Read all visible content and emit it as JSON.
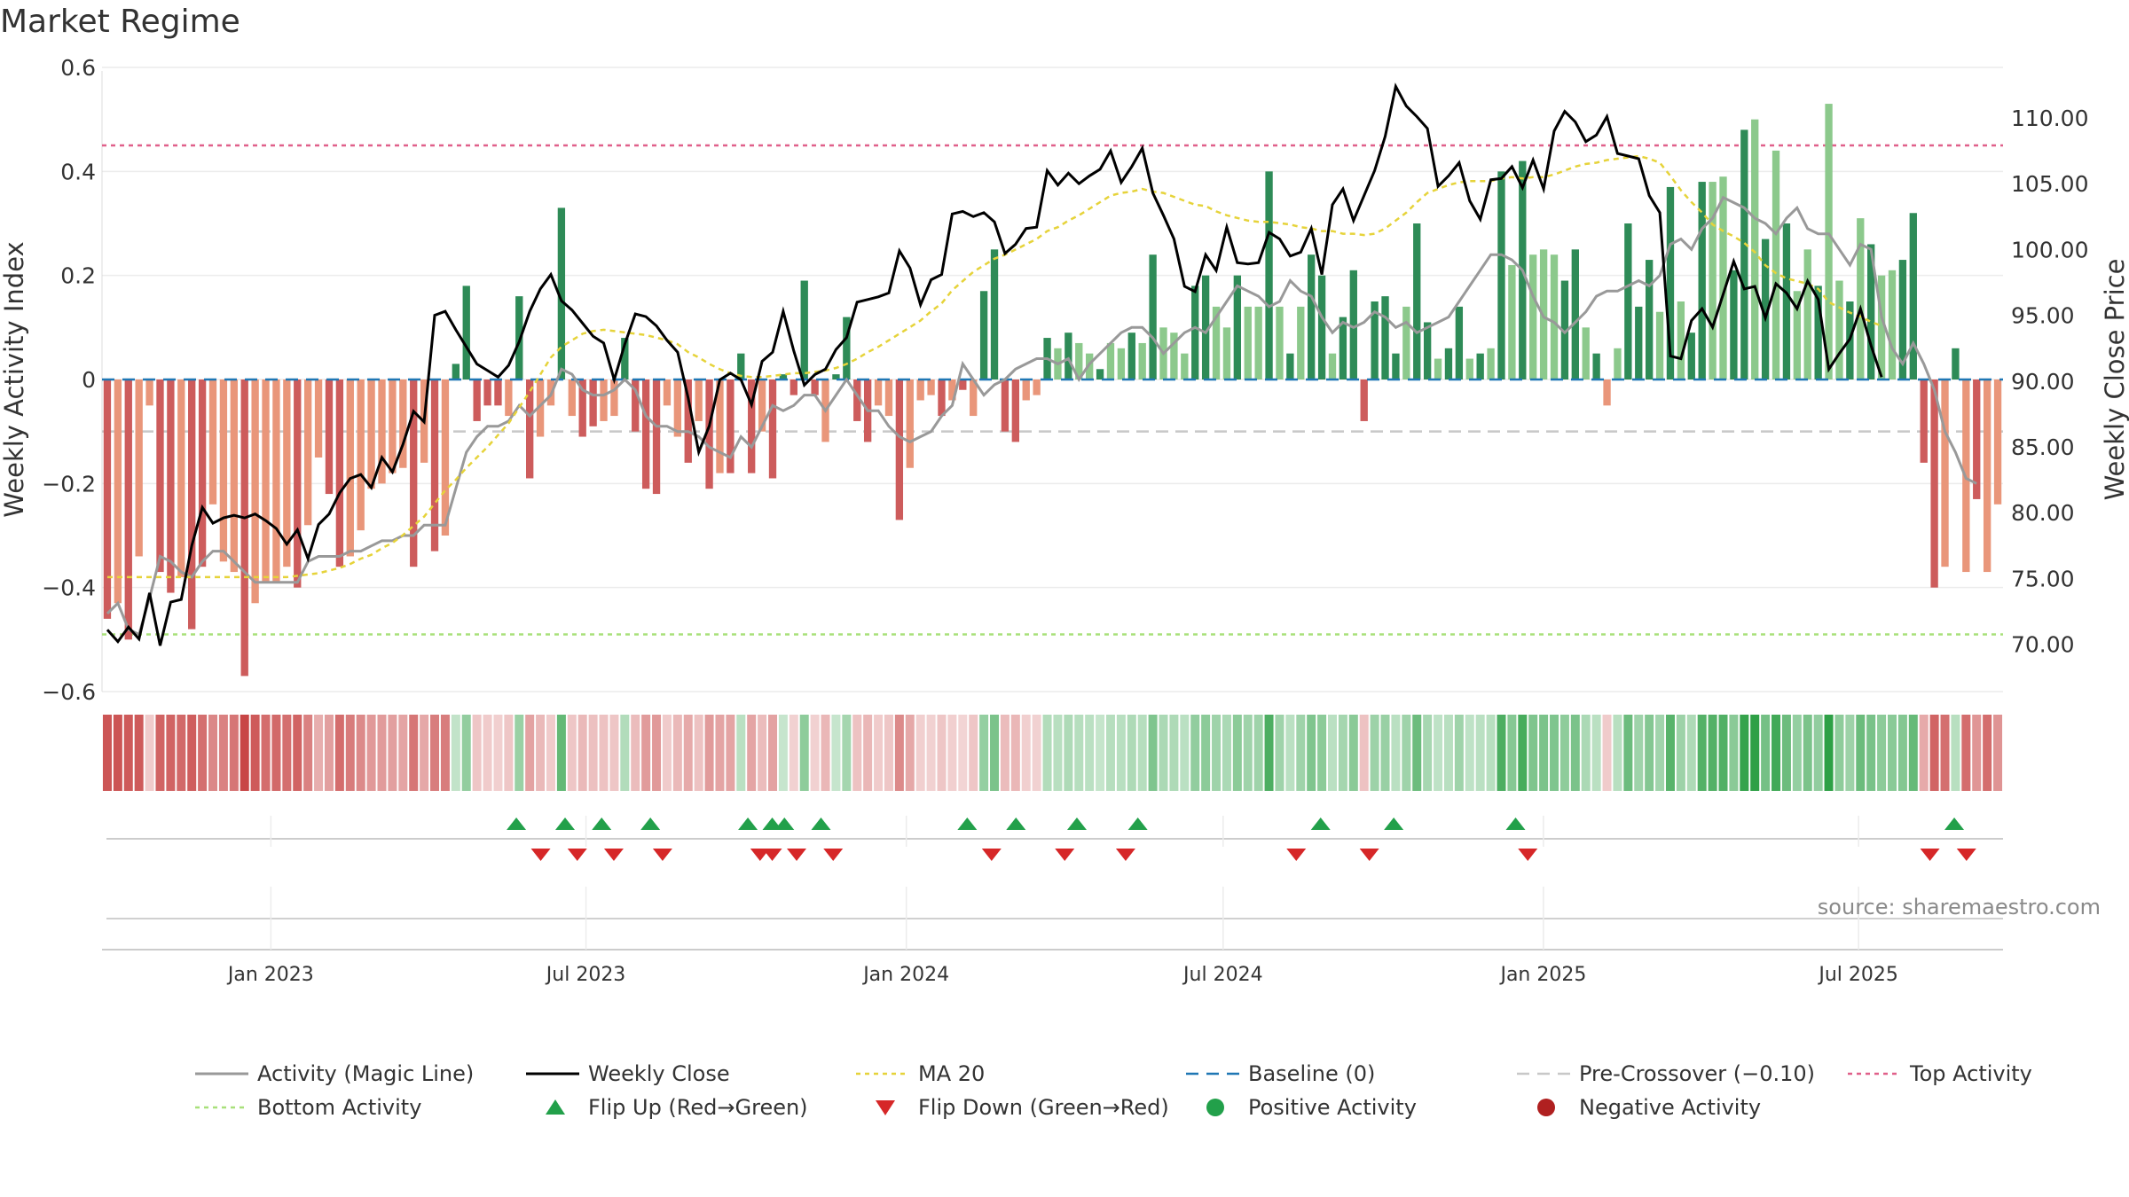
{
  "title": "Market Regime",
  "source": "source: sharemaestro.com",
  "colors": {
    "strong_pos": "#2e8b57",
    "weak_pos": "#8cc98c",
    "strong_neg": "#cd5c5c",
    "weak_neg": "#e9967a",
    "close_line": "#000000",
    "magic_line": "#999999",
    "ma": "#e6d33a",
    "baseline": "#1f77b4",
    "pre_crossover": "#c8c8c8",
    "top_activity": "#e0608a",
    "bottom_activity": "#a8e07a",
    "flip_up": "#22a04a",
    "flip_down": "#d62728"
  },
  "chart_data": {
    "type": "bar",
    "title": "Market Regime",
    "ylabel": "Weekly Activity Index",
    "y2label": "Weekly Close Price",
    "ylim": [
      -0.6,
      0.6
    ],
    "y2lim": [
      70,
      110
    ],
    "yticks": [
      "0.6",
      "0.4",
      "0.2",
      "0",
      "−0.2",
      "−0.4",
      "−0.6"
    ],
    "y2ticks": [
      "110.00",
      "105.00",
      "100.00",
      "95.00",
      "90.00",
      "85.00",
      "80.00",
      "75.00",
      "70.00"
    ],
    "xticks": [
      "Jan 2023",
      "Jul 2023",
      "Jan 2024",
      "Jul 2024",
      "Jan 2025",
      "Jul 2025"
    ],
    "x_start": "2022-09-26",
    "x_end": "2025-09-22",
    "reference_lines": {
      "baseline": 0,
      "pre_crossover": -0.1,
      "top_activity": 0.45,
      "bottom_activity": -0.49
    },
    "activity": [
      -0.46,
      -0.43,
      -0.5,
      -0.34,
      -0.05,
      -0.37,
      -0.41,
      -0.38,
      -0.48,
      -0.36,
      -0.24,
      -0.35,
      -0.37,
      -0.57,
      -0.43,
      -0.39,
      -0.39,
      -0.36,
      -0.4,
      -0.28,
      -0.15,
      -0.22,
      -0.36,
      -0.34,
      -0.29,
      -0.21,
      -0.2,
      -0.18,
      -0.17,
      -0.36,
      -0.16,
      -0.33,
      -0.3,
      0.03,
      0.18,
      -0.08,
      -0.05,
      -0.05,
      -0.07,
      0.16,
      -0.19,
      -0.11,
      -0.05,
      0.33,
      -0.07,
      -0.11,
      -0.09,
      -0.08,
      -0.07,
      0.08,
      -0.1,
      -0.21,
      -0.22,
      -0.05,
      -0.11,
      -0.16,
      -0.08,
      -0.21,
      -0.18,
      -0.18,
      0.05,
      -0.18,
      -0.1,
      -0.19,
      0.01,
      -0.03,
      0.19,
      -0.03,
      -0.12,
      0.01,
      0.12,
      -0.08,
      -0.12,
      -0.05,
      -0.07,
      -0.27,
      -0.17,
      -0.04,
      -0.03,
      -0.07,
      -0.04,
      -0.02,
      -0.07,
      0.17,
      0.25,
      -0.1,
      -0.12,
      -0.04,
      -0.03,
      0.08,
      0.06,
      0.09,
      0.07,
      0.05,
      0.02,
      0.07,
      0.06,
      0.09,
      0.07,
      0.24,
      0.1,
      0.09,
      0.05,
      0.18,
      0.2,
      0.14,
      0.1,
      0.2,
      0.14,
      0.14,
      0.4,
      0.14,
      0.05,
      0.14,
      0.24,
      0.2,
      0.05,
      0.12,
      0.21,
      -0.08,
      0.15,
      0.16,
      0.05,
      0.14,
      0.3,
      0.11,
      0.04,
      0.06,
      0.14,
      0.04,
      0.05,
      0.06,
      0.4,
      0.22,
      0.42,
      0.24,
      0.25,
      0.24,
      0.19,
      0.25,
      0.1,
      0.05,
      -0.05,
      0.06,
      0.3,
      0.14,
      0.23,
      0.13,
      0.37,
      0.15,
      0.09,
      0.38,
      0.38,
      0.39,
      0.21,
      0.48,
      0.5,
      0.27,
      0.44,
      0.3,
      0.17,
      0.25,
      0.18,
      0.53,
      0.19,
      0.15,
      0.31,
      0.26,
      0.2,
      0.21,
      0.23,
      0.32,
      -0.16,
      -0.4,
      -0.36,
      0.06,
      -0.37,
      -0.23,
      -0.37,
      -0.24
    ],
    "activity_strong": [
      true,
      false,
      true,
      false,
      false,
      true,
      true,
      false,
      true,
      true,
      false,
      false,
      false,
      true,
      false,
      false,
      false,
      false,
      true,
      false,
      false,
      true,
      true,
      false,
      false,
      false,
      false,
      false,
      false,
      true,
      false,
      true,
      false,
      true,
      true,
      true,
      true,
      true,
      false,
      true,
      true,
      false,
      false,
      true,
      false,
      true,
      true,
      false,
      false,
      true,
      true,
      true,
      true,
      false,
      false,
      true,
      false,
      true,
      false,
      true,
      true,
      true,
      false,
      true,
      true,
      true,
      true,
      true,
      false,
      true,
      true,
      true,
      true,
      false,
      false,
      true,
      false,
      false,
      false,
      true,
      false,
      true,
      false,
      true,
      true,
      true,
      true,
      false,
      false,
      true,
      false,
      true,
      false,
      false,
      true,
      false,
      false,
      true,
      false,
      true,
      false,
      false,
      false,
      true,
      true,
      false,
      false,
      true,
      false,
      false,
      true,
      false,
      true,
      false,
      true,
      true,
      false,
      true,
      true,
      true,
      true,
      true,
      true,
      false,
      true,
      true,
      false,
      true,
      true,
      false,
      true,
      false,
      true,
      false,
      true,
      false,
      false,
      false,
      true,
      true,
      false,
      true,
      false,
      false,
      true,
      true,
      true,
      false,
      true,
      false,
      true,
      true,
      false,
      false,
      true,
      true,
      false,
      true,
      false,
      true,
      false,
      false,
      true,
      false,
      false,
      true,
      false,
      true,
      false,
      false,
      true,
      true,
      true,
      true,
      false,
      true,
      false,
      true,
      false
    ],
    "magic_line": [
      -0.45,
      -0.43,
      -0.48,
      -0.49,
      -0.42,
      -0.34,
      -0.35,
      -0.37,
      -0.38,
      -0.35,
      -0.33,
      -0.33,
      -0.35,
      -0.37,
      -0.39,
      -0.39,
      -0.39,
      -0.39,
      -0.39,
      -0.35,
      -0.34,
      -0.34,
      -0.34,
      -0.33,
      -0.33,
      -0.32,
      -0.31,
      -0.31,
      -0.3,
      -0.3,
      -0.28,
      -0.28,
      -0.28,
      -0.21,
      -0.14,
      -0.11,
      -0.09,
      -0.09,
      -0.08,
      -0.05,
      -0.07,
      -0.05,
      -0.03,
      0.02,
      0.01,
      -0.02,
      -0.03,
      -0.03,
      -0.02,
      0.0,
      -0.02,
      -0.07,
      -0.09,
      -0.09,
      -0.1,
      -0.1,
      -0.11,
      -0.13,
      -0.14,
      -0.15,
      -0.11,
      -0.13,
      -0.09,
      -0.05,
      -0.06,
      -0.05,
      -0.03,
      -0.03,
      -0.06,
      -0.03,
      0.0,
      -0.03,
      -0.06,
      -0.06,
      -0.09,
      -0.11,
      -0.12,
      -0.11,
      -0.1,
      -0.07,
      -0.05,
      0.03,
      0.0,
      -0.03,
      -0.01,
      0.0,
      0.02,
      0.03,
      0.04,
      0.04,
      0.03,
      0.04,
      0.0,
      0.03,
      0.05,
      0.07,
      0.09,
      0.1,
      0.1,
      0.08,
      0.05,
      0.07,
      0.09,
      0.1,
      0.09,
      0.12,
      0.15,
      0.18,
      0.17,
      0.16,
      0.14,
      0.15,
      0.19,
      0.17,
      0.16,
      0.12,
      0.09,
      0.11,
      0.1,
      0.11,
      0.13,
      0.12,
      0.1,
      0.11,
      0.09,
      0.1,
      0.11,
      0.12,
      0.15,
      0.18,
      0.21,
      0.24,
      0.24,
      0.23,
      0.21,
      0.16,
      0.12,
      0.11,
      0.09,
      0.11,
      0.13,
      0.16,
      0.17,
      0.17,
      0.18,
      0.19,
      0.18,
      0.2,
      0.26,
      0.27,
      0.25,
      0.29,
      0.31,
      0.35,
      0.34,
      0.33,
      0.31,
      0.3,
      0.28,
      0.31,
      0.33,
      0.29,
      0.28,
      0.28,
      0.25,
      0.22,
      0.26,
      0.25,
      0.12,
      0.06,
      0.03,
      0.07,
      0.03,
      -0.02,
      -0.1,
      -0.14,
      -0.19,
      -0.2
    ],
    "close": [
      71.1,
      70.2,
      71.3,
      70.4,
      73.9,
      69.9,
      73.2,
      73.4,
      77.5,
      80.4,
      79.2,
      79.6,
      79.8,
      79.6,
      79.9,
      79.4,
      78.8,
      77.6,
      78.7,
      76.5,
      79.1,
      79.9,
      81.5,
      82.6,
      82.9,
      81.9,
      84.2,
      83.1,
      85.2,
      87.7,
      86.9,
      95.0,
      95.3,
      93.9,
      92.6,
      91.3,
      90.8,
      90.3,
      91.2,
      93.0,
      95.3,
      97.0,
      98.1,
      96.1,
      95.4,
      94.4,
      93.4,
      92.9,
      90.1,
      92.8,
      95.1,
      94.9,
      94.2,
      93.1,
      92.2,
      88.7,
      84.6,
      86.6,
      90.1,
      90.6,
      90.1,
      88.2,
      91.5,
      92.2,
      95.3,
      92.3,
      89.7,
      90.5,
      90.9,
      92.4,
      93.3,
      96.0,
      96.2,
      96.4,
      96.7,
      99.9,
      98.6,
      95.8,
      97.7,
      98.1,
      102.7,
      102.9,
      102.5,
      102.8,
      102.1,
      99.7,
      100.4,
      101.6,
      101.7,
      106.0,
      104.9,
      105.8,
      105.0,
      105.6,
      106.1,
      107.5,
      105.1,
      106.3,
      107.7,
      104.3,
      102.6,
      100.8,
      97.2,
      96.8,
      99.6,
      98.4,
      101.7,
      99.0,
      98.9,
      99.0,
      101.3,
      100.8,
      99.5,
      99.8,
      101.6,
      98.1,
      103.4,
      104.6,
      102.2,
      104.1,
      106.0,
      108.6,
      112.4,
      110.9,
      110.1,
      109.2,
      104.8,
      105.6,
      106.6,
      103.7,
      102.3,
      105.3,
      105.4,
      106.3,
      104.7,
      106.8,
      104.6,
      109.0,
      110.5,
      109.7,
      108.2,
      108.7,
      110.1,
      107.3,
      107.1,
      106.9,
      104.1,
      102.8,
      91.9,
      91.7,
      94.6,
      95.5,
      94.1,
      96.6,
      99.1,
      97.0,
      97.2,
      94.8,
      97.4,
      96.7,
      95.5,
      97.6,
      96.2,
      90.9,
      92.1,
      93.2,
      95.5,
      92.7,
      90.3
    ],
    "ma20": [
      75.1,
      75.1,
      75.1,
      75.1,
      75.1,
      75.1,
      75.1,
      75.1,
      75.1,
      75.1,
      75.1,
      75.1,
      75.1,
      75.1,
      75.1,
      75.1,
      75.1,
      75.1,
      75.2,
      75.3,
      75.4,
      75.6,
      75.8,
      76.1,
      76.5,
      76.8,
      77.3,
      77.7,
      78.3,
      79.0,
      79.7,
      80.7,
      81.7,
      82.5,
      83.4,
      84.2,
      85.0,
      85.9,
      86.8,
      88.0,
      89.2,
      90.5,
      91.8,
      92.6,
      93.1,
      93.6,
      93.8,
      93.9,
      93.8,
      93.7,
      93.6,
      93.5,
      93.3,
      93.1,
      92.8,
      92.2,
      91.8,
      91.3,
      90.9,
      90.6,
      90.4,
      90.3,
      90.3,
      90.4,
      90.5,
      90.6,
      90.6,
      90.7,
      90.8,
      91.0,
      91.3,
      91.7,
      92.2,
      92.6,
      93.1,
      93.6,
      94.1,
      94.6,
      95.3,
      95.9,
      96.9,
      97.6,
      98.3,
      98.8,
      99.3,
      99.6,
      100.0,
      100.4,
      100.8,
      101.4,
      101.7,
      102.2,
      102.6,
      103.1,
      103.6,
      104.1,
      104.3,
      104.4,
      104.6,
      104.4,
      104.3,
      104.0,
      103.7,
      103.4,
      103.3,
      102.9,
      102.6,
      102.4,
      102.2,
      102.1,
      102.1,
      102.0,
      101.9,
      101.7,
      101.6,
      101.4,
      101.4,
      101.2,
      101.2,
      101.1,
      101.2,
      101.6,
      102.2,
      102.8,
      103.6,
      104.3,
      104.6,
      104.9,
      105.1,
      105.2,
      105.2,
      105.2,
      105.4,
      105.5,
      105.4,
      105.5,
      105.5,
      105.7,
      106.0,
      106.3,
      106.5,
      106.6,
      106.8,
      106.9,
      107.0,
      107.1,
      106.9,
      106.6,
      105.6,
      104.5,
      103.6,
      102.8,
      101.9,
      101.4,
      101.0,
      100.5,
      99.8,
      98.8,
      98.2,
      97.8,
      97.6,
      97.4,
      97.0,
      96.0,
      95.6,
      95.2,
      94.9,
      94.5,
      94.2
    ],
    "regime_strip": [
      -0.45,
      -0.45,
      -0.43,
      -0.43,
      -0.05,
      -0.4,
      -0.4,
      -0.38,
      -0.42,
      -0.36,
      -0.28,
      -0.3,
      -0.34,
      -0.5,
      -0.43,
      -0.37,
      -0.38,
      -0.36,
      -0.4,
      -0.3,
      -0.15,
      -0.2,
      -0.37,
      -0.32,
      -0.27,
      -0.22,
      -0.21,
      -0.2,
      -0.18,
      -0.34,
      -0.17,
      -0.31,
      -0.31,
      0.03,
      0.18,
      -0.07,
      -0.05,
      -0.04,
      -0.07,
      0.16,
      -0.19,
      -0.11,
      -0.05,
      0.33,
      -0.07,
      -0.11,
      -0.09,
      -0.08,
      -0.07,
      0.08,
      -0.1,
      -0.21,
      -0.22,
      -0.05,
      -0.11,
      -0.16,
      -0.08,
      -0.21,
      -0.18,
      -0.18,
      0.05,
      -0.18,
      -0.1,
      -0.19,
      0.01,
      -0.03,
      0.19,
      -0.03,
      -0.12,
      0.01,
      0.12,
      -0.08,
      -0.12,
      -0.05,
      -0.07,
      -0.27,
      -0.17,
      -0.04,
      -0.03,
      -0.07,
      -0.04,
      -0.02,
      -0.07,
      0.17,
      0.25,
      -0.1,
      -0.12,
      -0.04,
      -0.03,
      0.08,
      0.06,
      0.09,
      0.07,
      0.05,
      0.02,
      0.07,
      0.06,
      0.09,
      0.07,
      0.24,
      0.1,
      0.09,
      0.05,
      0.18,
      0.2,
      0.14,
      0.1,
      0.2,
      0.14,
      0.14,
      0.4,
      0.14,
      0.05,
      0.14,
      0.24,
      0.2,
      0.05,
      0.12,
      0.21,
      -0.08,
      0.15,
      0.16,
      0.05,
      0.14,
      0.3,
      0.11,
      0.04,
      0.06,
      0.14,
      0.04,
      0.05,
      0.06,
      0.4,
      0.22,
      0.42,
      0.24,
      0.25,
      0.24,
      0.19,
      0.25,
      0.1,
      0.05,
      -0.05,
      0.06,
      0.3,
      0.14,
      0.23,
      0.13,
      0.37,
      0.15,
      0.09,
      0.38,
      0.38,
      0.39,
      0.21,
      0.48,
      0.5,
      0.27,
      0.44,
      0.3,
      0.17,
      0.25,
      0.18,
      0.53,
      0.19,
      0.15,
      0.31,
      0.26,
      0.2,
      0.21,
      0.23,
      0.32,
      -0.16,
      -0.4,
      -0.36,
      0.06,
      -0.37,
      -0.23,
      -0.37,
      -0.24
    ],
    "flips_up": [
      "2023-05-22",
      "2023-06-19",
      "2023-07-10",
      "2023-08-07",
      "2023-10-02",
      "2023-10-16",
      "2023-10-23",
      "2023-11-13",
      "2024-02-05",
      "2024-03-04",
      "2024-04-08",
      "2024-05-13",
      "2024-08-26",
      "2024-10-07",
      "2024-12-16",
      "2025-08-25"
    ],
    "flips_down": [
      "2023-06-05",
      "2023-06-26",
      "2023-07-17",
      "2023-08-14",
      "2023-10-09",
      "2023-10-16",
      "2023-10-30",
      "2023-11-20",
      "2024-02-19",
      "2024-04-01",
      "2024-05-06",
      "2024-08-12",
      "2024-09-23",
      "2024-12-23",
      "2025-08-11",
      "2025-09-01"
    ],
    "legend": [
      {
        "label": "Activity (Magic Line)",
        "type": "line",
        "color": "#999999"
      },
      {
        "label": "Weekly Close",
        "type": "line",
        "color": "#000000"
      },
      {
        "label": "MA 20",
        "type": "dotted",
        "color": "#e6d33a"
      },
      {
        "label": "Baseline (0)",
        "type": "dashed",
        "color": "#1f77b4"
      },
      {
        "label": "Pre-Crossover (−0.10)",
        "type": "dashed",
        "color": "#c8c8c8"
      },
      {
        "label": "Top Activity",
        "type": "dotted",
        "color": "#e0608a"
      },
      {
        "label": "Bottom Activity",
        "type": "dotted",
        "color": "#a8e07a"
      },
      {
        "label": "Flip Up (Red→Green)",
        "type": "tri-up",
        "color": "#22a04a"
      },
      {
        "label": "Flip Down (Green→Red)",
        "type": "tri-down",
        "color": "#d62728"
      },
      {
        "label": "Positive Activity",
        "type": "dot",
        "color": "#22a04a"
      },
      {
        "label": "Negative Activity",
        "type": "dot",
        "color": "#b02020"
      }
    ],
    "legend_placement": "bottom",
    "grid": true
  }
}
